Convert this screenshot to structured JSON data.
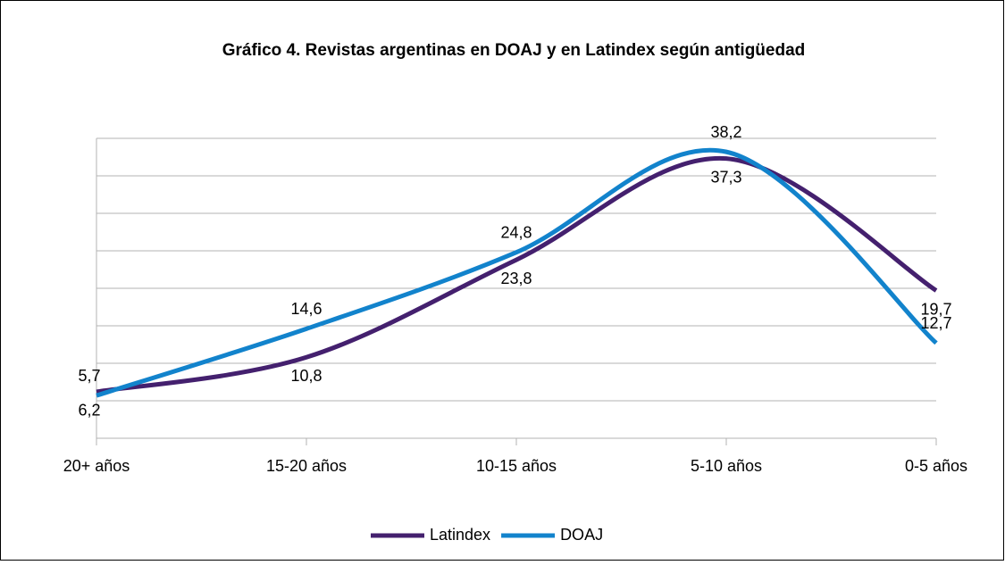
{
  "chart_data": {
    "type": "line",
    "title": "Gráfico 4. Revistas argentinas en DOAJ y en Latindex según antigüedad",
    "categories": [
      "20+ años",
      "15-20 años",
      "10-15 años",
      "5-10 años",
      "0-5 años"
    ],
    "series": [
      {
        "name": "Latindex",
        "color": "#44206e",
        "values": [
          6.2,
          10.8,
          23.8,
          37.3,
          19.7
        ],
        "value_labels": [
          "6,2",
          "10,8",
          "23,8",
          "37,3",
          "19,7"
        ]
      },
      {
        "name": "DOAJ",
        "color": "#1283cc",
        "values": [
          5.7,
          14.6,
          24.8,
          38.2,
          12.7
        ],
        "value_labels": [
          "5,7",
          "14,6",
          "24,8",
          "38,2",
          "12,7"
        ]
      }
    ],
    "ylim": [
      0,
      40
    ],
    "yticks": [
      0,
      5,
      10,
      15,
      20,
      25,
      30,
      35,
      40
    ],
    "grid": true,
    "smooth": true,
    "legend": "bottom"
  }
}
